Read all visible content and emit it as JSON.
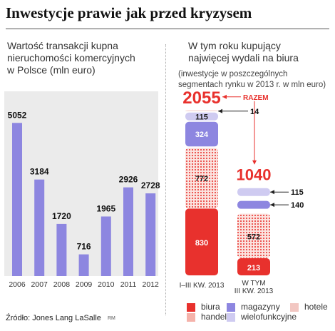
{
  "headline": "Inwestycje prawie jak przed kryzysem",
  "left_chart": {
    "subtitle_lines": [
      "Wartość transakcji kupna",
      "nieruchomości komercyjnych",
      "w Polsce (mln euro)"
    ]
  },
  "right_chart": {
    "subtitle_lines": [
      "W tym roku kupujący",
      "najwięcej wydali na biura"
    ],
    "note_lines": [
      "(inwestycje w poszczególnych",
      "segmentach rynku w 2013 r. w mln euro)"
    ],
    "razem_label": "RAZEM"
  },
  "legend": {
    "biura": "biura",
    "magazyny": "magazyny",
    "hotele": "hotele",
    "handel": "handel",
    "wielofunkcyjne": "wielofunkcyjne"
  },
  "source": "Źródło: Jones Lang LaSalle",
  "credit": "RM",
  "colors": {
    "biura": "#e8312d",
    "handel": "#e8312d",
    "magazyny": "#8d86e0",
    "wielofunkcyjne": "#cfcbf1",
    "hotele": "#f2c7c2",
    "bar": "#8d86e0"
  },
  "chart_data": [
    {
      "type": "bar",
      "categories": [
        "2006",
        "2007",
        "2008",
        "2009",
        "2010",
        "2011",
        "2012"
      ],
      "values": [
        5052,
        3184,
        1720,
        716,
        1965,
        2926,
        2728
      ],
      "ylim": [
        0,
        5500
      ],
      "grid": false
    },
    {
      "type": "bar",
      "stacked": true,
      "categories": [
        "I–III KW. 2013",
        "W TYM III KW. 2013"
      ],
      "totals": [
        2055,
        1040
      ],
      "series": [
        {
          "name": "biura",
          "values": [
            830,
            213
          ]
        },
        {
          "name": "handel",
          "values": [
            772,
            572
          ]
        },
        {
          "name": "magazyny",
          "values": [
            324,
            140
          ]
        },
        {
          "name": "wielofunkcyjne",
          "values": [
            115,
            115
          ]
        },
        {
          "name": "hotele",
          "values": [
            14,
            null
          ]
        }
      ]
    }
  ]
}
